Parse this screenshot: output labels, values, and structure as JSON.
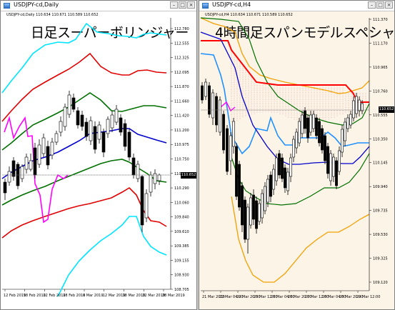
{
  "left": {
    "window_title": "USDJPY-cd,Daily",
    "symbol_info": "USDJPY-cd,Daily  110.634 110.671 110.589 110.652",
    "big_title": "日足スーパーボリンジャー",
    "current_price": "110.652",
    "price_axis": [
      "112.780",
      "112.555",
      "112.325",
      "112.095",
      "111.870",
      "111.660",
      "111.420",
      "111.200",
      "110.975",
      "110.750",
      "110.515",
      "110.290",
      "110.060",
      "109.840",
      "109.610",
      "109.385",
      "109.155",
      "108.930",
      "108.705"
    ],
    "time_axis": [
      "12 Feb 2019",
      "18 Feb 2019",
      "22 Feb 2019",
      "28 Feb 2019",
      "6 Mar 2019",
      "12 Mar 2019",
      "18 Mar 2019",
      "22 Mar 2019",
      "28 Mar 2019"
    ]
  },
  "right": {
    "window_title": "USDJPY-cd,H4",
    "symbol_info": "USDJPY-cd,H4  110.634 110.671 110.589 110.652",
    "big_title": "4時間足スパンモデルスペシャル",
    "current_price": "110.652",
    "price_axis": [
      "111.370",
      "111.170",
      "110.965",
      "110.760",
      "110.555",
      "110.350",
      "110.145",
      "109.940",
      "109.735",
      "109.530",
      "109.325",
      "109.120"
    ],
    "time_axis": [
      "21 Mar 2019",
      "22 Mar 04:00",
      "22 Mar 20:00",
      "25 Mar 12:00",
      "26 Mar 04:00",
      "26 Mar 20:00",
      "27 Mar 12:00",
      "28 Mar 04:00",
      "28 Mar 20:00",
      "29 Mar 12:00"
    ]
  },
  "colors": {
    "bb_outer": "#00e5ff",
    "bb_2": "#e00000",
    "bb_1": "#007000",
    "bb_mid": "#0000cc",
    "lagging": "#ff00ff",
    "span_red": "#ff0000",
    "span_blue": "#1e90ff",
    "orange_band": "#f0a000",
    "background_right": "#fdf4e8"
  }
}
